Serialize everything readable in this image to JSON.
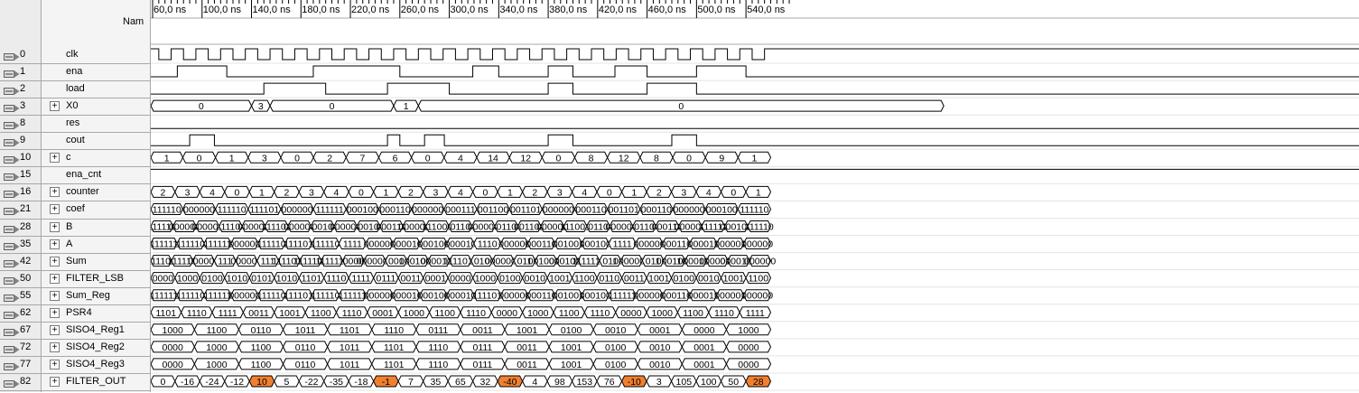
{
  "header": {
    "name_column": "Nam"
  },
  "timeline": {
    "unit": "ns",
    "ticks": [
      "60,0 ns",
      "100,0 ns",
      "140,0 ns",
      "180,0 ns",
      "220,0 ns",
      "260,0 ns",
      "300,0 ns",
      "340,0 ns",
      "380,0 ns",
      "420,0 ns",
      "460,0 ns",
      "500,0 ns",
      "540,0 ns"
    ]
  },
  "colors": {
    "highlight": "#f08030",
    "wave": "#000000",
    "grid": "#a8a8a8"
  },
  "signals": [
    {
      "id": "0",
      "name": "clk",
      "bus": false
    },
    {
      "id": "1",
      "name": "ena",
      "bus": false
    },
    {
      "id": "2",
      "name": "load",
      "bus": false
    },
    {
      "id": "3",
      "name": "X0",
      "bus": true
    },
    {
      "id": "8",
      "name": "res",
      "bus": false
    },
    {
      "id": "9",
      "name": "cout",
      "bus": false
    },
    {
      "id": "10",
      "name": "c",
      "bus": true
    },
    {
      "id": "15",
      "name": "ena_cnt",
      "bus": false
    },
    {
      "id": "16",
      "name": "counter",
      "bus": true
    },
    {
      "id": "21",
      "name": "coef",
      "bus": true
    },
    {
      "id": "28",
      "name": "B",
      "bus": true
    },
    {
      "id": "35",
      "name": "A",
      "bus": true
    },
    {
      "id": "42",
      "name": "Sum",
      "bus": true
    },
    {
      "id": "50",
      "name": "FILTER_LSB",
      "bus": true
    },
    {
      "id": "55",
      "name": "Sum_Reg",
      "bus": true
    },
    {
      "id": "62",
      "name": "PSR4",
      "bus": true
    },
    {
      "id": "67",
      "name": "SISO4_Reg1",
      "bus": true
    },
    {
      "id": "72",
      "name": "SISO4_Reg2",
      "bus": true
    },
    {
      "id": "77",
      "name": "SISO4_Reg3",
      "bus": true
    },
    {
      "id": "82",
      "name": "FILTER_OUT",
      "bus": true
    }
  ],
  "waves": {
    "X0": [
      [
        "0",
        "0"
      ],
      [
        "3",
        "3"
      ],
      [
        "0",
        "0"
      ],
      [
        "1",
        "1"
      ],
      [
        "0",
        "0"
      ]
    ],
    "c": [
      "1",
      "0",
      "1",
      "3",
      "0",
      "2",
      "7",
      "6",
      "0",
      "4",
      "14",
      "12",
      "0",
      "8",
      "12",
      "8",
      "0",
      "9",
      "1"
    ],
    "counter": [
      "2",
      "3",
      "4",
      "0",
      "1",
      "2",
      "3",
      "4",
      "0",
      "1",
      "2",
      "3",
      "4",
      "0",
      "1",
      "2",
      "3",
      "4",
      "0",
      "1",
      "2",
      "3",
      "4",
      "0",
      "1"
    ],
    "coef": [
      "111110",
      "000000",
      "111110",
      "111101",
      "000000",
      "111111",
      "000100",
      "000110",
      "000000",
      "000111",
      "001100",
      "001101",
      "000000",
      "000110",
      "001101",
      "000110",
      "000000",
      "000100",
      "111110"
    ],
    "B": [
      "111110",
      "000000",
      "000001",
      "1110",
      "000000",
      "111101",
      "000000",
      "0010",
      "000000",
      "0010",
      "000110",
      "000000",
      "111000",
      "0110",
      "000000",
      "0110",
      "001101",
      "000000",
      "111001",
      "0110",
      "000000",
      "0110",
      "000110",
      "000000",
      "111111",
      "000100",
      "111110"
    ],
    "A": [
      "111111",
      "111110",
      "111111",
      "000000",
      "111110",
      "111101",
      "111110",
      "1111",
      "000000",
      "000010",
      "000100",
      "000010",
      "1110",
      "000000",
      "000110",
      "001001",
      "000100",
      "1111",
      "000000",
      "000110",
      "000011",
      "000001",
      "000000"
    ],
    "Sum": [
      "111101",
      "111110",
      "000001",
      "111",
      "000000",
      "111",
      "1111011",
      "1111101",
      "1111111",
      "0000",
      "0000000",
      "001",
      "0001000",
      "0000100",
      "1111011",
      "010",
      "0000000",
      "011",
      "0010011",
      "0001001",
      "1111110",
      "011",
      "0000000",
      "011",
      "0001100",
      "0000110",
      "0000011",
      "0000101",
      "000000"
    ],
    "FILTER_LSB": [
      "0000",
      "1000",
      "0100",
      "1010",
      "0101",
      "1010",
      "1101",
      "1110",
      "1111",
      "0111",
      "0011",
      "0001",
      "0000",
      "1000",
      "0100",
      "0010",
      "1001",
      "1100",
      "0110",
      "0011",
      "1001",
      "0100",
      "0010",
      "1001",
      "1100"
    ],
    "Sum_Reg": [
      "111111",
      "111110",
      "111111",
      "000000",
      "111110",
      "111101",
      "111110",
      "111111",
      "000000",
      "000010",
      "000100",
      "000010",
      "111101",
      "000000",
      "000110",
      "001001",
      "000100",
      "111111",
      "000000",
      "000110",
      "000011",
      "000001",
      "000000"
    ],
    "PSR4": [
      "1101",
      "1110",
      "1111",
      "0011",
      "1001",
      "1100",
      "1110",
      "0001",
      "1000",
      "1100",
      "1110",
      "0000",
      "1000",
      "1100",
      "1110",
      "0000",
      "1000",
      "1100",
      "1110",
      "1111"
    ],
    "SISO4_Reg1": [
      "1000",
      "1100",
      "0110",
      "1011",
      "1101",
      "1110",
      "0111",
      "0011",
      "1001",
      "0100",
      "0010",
      "0001",
      "0000",
      "1000"
    ],
    "SISO4_Reg2": [
      "0000",
      "1000",
      "1100",
      "0110",
      "1011",
      "1101",
      "1110",
      "0111",
      "0011",
      "1001",
      "0100",
      "0010",
      "0001",
      "0000"
    ],
    "SISO4_Reg3": [
      "0000",
      "1000",
      "1100",
      "0110",
      "1011",
      "1101",
      "1110",
      "0111",
      "0011",
      "1001",
      "0100",
      "0010",
      "0001",
      "0000"
    ],
    "FILTER_OUT": [
      "0",
      "-16",
      "-24",
      "-12",
      "10",
      "5",
      "-22",
      "-35",
      "-18",
      "-1",
      "7",
      "35",
      "65",
      "32",
      "-40",
      "4",
      "98",
      "153",
      "76",
      "-10",
      "3",
      "105",
      "100",
      "50",
      "28"
    ]
  },
  "filter_out_highlighted": [
    "10",
    "-1",
    "-40",
    "-10",
    "28"
  ]
}
